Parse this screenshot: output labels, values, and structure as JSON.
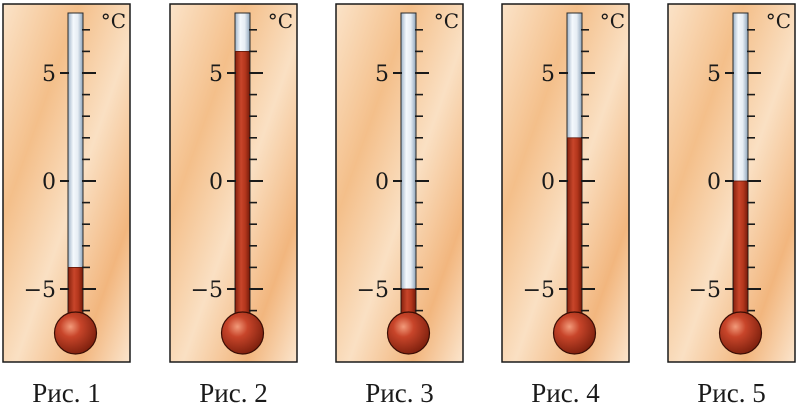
{
  "scale": {
    "unit_label": "°C",
    "tick_labels": [
      "5",
      "0",
      "−5"
    ],
    "tick_values": [
      5,
      0,
      -5
    ],
    "range": [
      -6,
      7
    ]
  },
  "colors": {
    "panel_light": "#fbe6cf",
    "panel_dark": "#f2b77f",
    "mercury": "#b8371a",
    "tube_glass": "#dfe8f2",
    "tick": "#1a1a1a"
  },
  "thermometers": [
    {
      "caption": "Рис. 1",
      "reading": -4
    },
    {
      "caption": "Рис. 2",
      "reading": 6
    },
    {
      "caption": "Рис. 3",
      "reading": -5
    },
    {
      "caption": "Рис. 4",
      "reading": 2
    },
    {
      "caption": "Рис. 5",
      "reading": 0
    }
  ]
}
